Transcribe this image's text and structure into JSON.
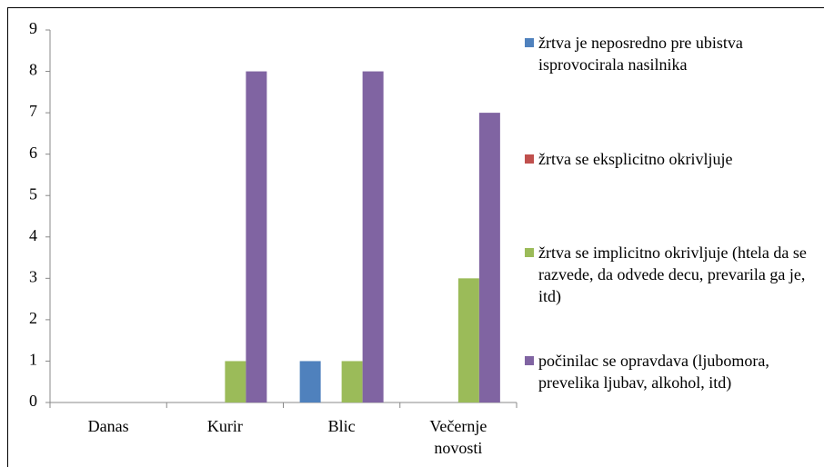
{
  "chart_data": {
    "type": "bar",
    "categories": [
      "Danas",
      "Kurir",
      "Blic",
      "Večernje novosti"
    ],
    "series": [
      {
        "name": "žrtva je neposredno pre ubistva isprovocirala nasilnika",
        "color": "#4f81bd",
        "values": [
          0,
          0,
          1,
          0
        ]
      },
      {
        "name": "žrtva se eksplicitno okrivljuje",
        "color": "#c0504d",
        "values": [
          0,
          0,
          0,
          0
        ]
      },
      {
        "name": "žrtva se implicitno okrivljuje (htela da se razvede, da odvede decu, prevarila ga je, itd)",
        "color": "#9bbb59",
        "values": [
          0,
          1,
          1,
          3
        ]
      },
      {
        "name": "počinilac se opravdava (ljubomora, prevelika ljubav, alkohol, itd)",
        "color": "#8064a2",
        "values": [
          0,
          8,
          8,
          7
        ]
      }
    ],
    "ylim": [
      0,
      9
    ],
    "yticks": [
      0,
      1,
      2,
      3,
      4,
      5,
      6,
      7,
      8,
      9
    ],
    "grid": false,
    "legend": "right"
  }
}
